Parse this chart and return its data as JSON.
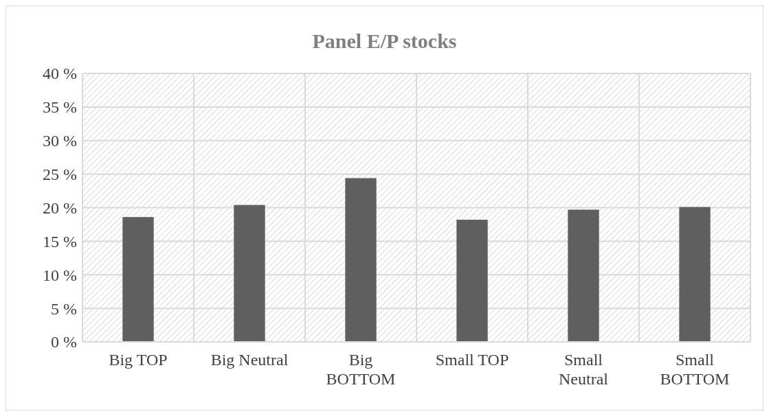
{
  "chart_data": {
    "type": "bar",
    "title": "Panel E/P stocks",
    "categories": [
      "Big TOP",
      "Big Neutral",
      "Big BOTTOM",
      "Small TOP",
      "Small Neutral",
      "Small BOTTOM"
    ],
    "values": [
      18.6,
      20.4,
      24.4,
      18.2,
      19.7,
      20.1
    ],
    "color": "#5f5f5f",
    "ylim": [
      0,
      40
    ],
    "yticks": [
      {
        "value": 0,
        "label": "0 %"
      },
      {
        "value": 5,
        "label": "5 %"
      },
      {
        "value": 10,
        "label": "10 %"
      },
      {
        "value": 15,
        "label": "15 %"
      },
      {
        "value": 20,
        "label": "20 %"
      },
      {
        "value": 25,
        "label": "25 %"
      },
      {
        "value": 30,
        "label": "30 %"
      },
      {
        "value": 35,
        "label": "35 %"
      },
      {
        "value": 40,
        "label": "40 %"
      }
    ],
    "grid": true
  }
}
